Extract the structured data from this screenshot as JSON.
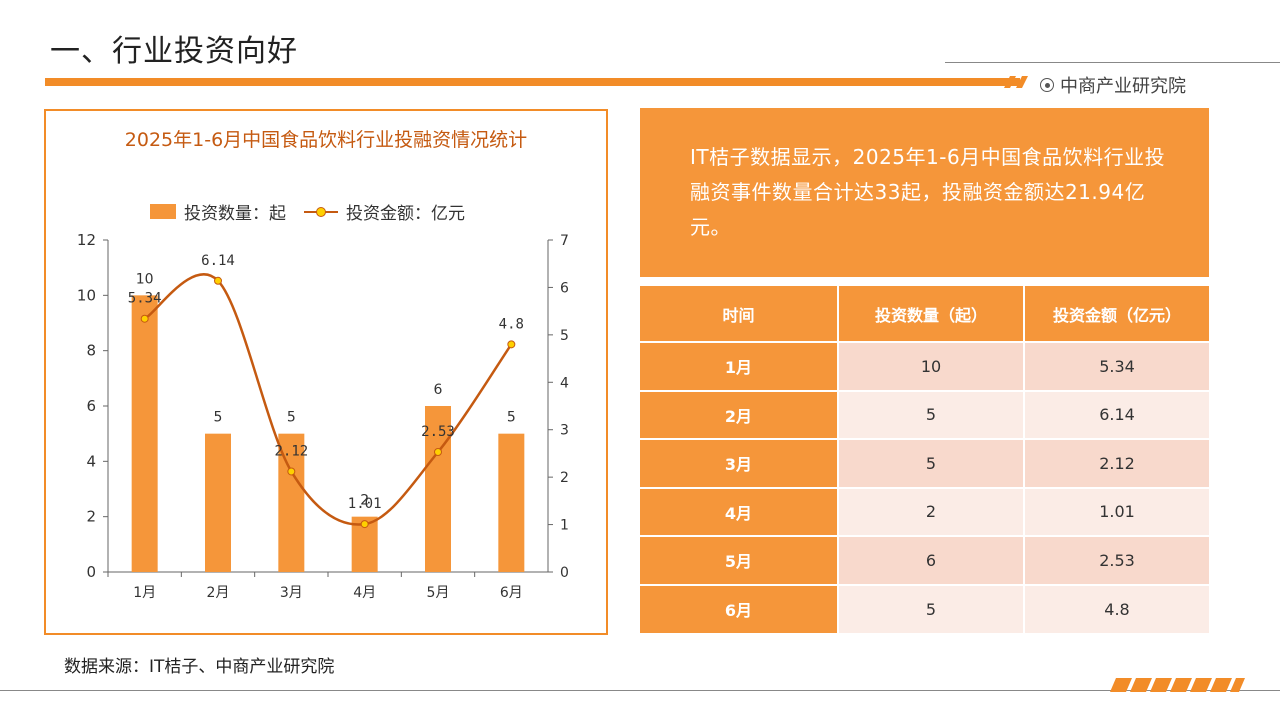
{
  "header": {
    "title": "一、行业投资向好",
    "brand": "中商产业研究院",
    "brand_icon": "target-icon",
    "accent_color": "#f28c28"
  },
  "chart_data": {
    "type": "bar+line",
    "title": "2025年1-6月中国食品饮料行业投融资情况统计",
    "categories": [
      "1月",
      "2月",
      "3月",
      "4月",
      "5月",
      "6月"
    ],
    "series": [
      {
        "name": "投资数量：起",
        "type": "bar",
        "axis": "left",
        "color": "#f5963a",
        "values": [
          10,
          5,
          5,
          2,
          6,
          5
        ]
      },
      {
        "name": "投资金额：亿元",
        "type": "line",
        "axis": "right",
        "color": "#c55a11",
        "marker_color": "#ffd000",
        "values": [
          5.34,
          6.14,
          2.12,
          1.01,
          2.53,
          4.8
        ]
      }
    ],
    "y_left": {
      "min": 0,
      "max": 12,
      "ticks": [
        0,
        2,
        4,
        6,
        8,
        10,
        12
      ]
    },
    "y_right": {
      "min": 0,
      "max": 7,
      "ticks": [
        0,
        1,
        2,
        3,
        4,
        5,
        6,
        7
      ]
    },
    "legend_position": "top",
    "grid": false
  },
  "summary": {
    "text": "IT桔子数据显示，2025年1-6月中国食品饮料行业投融资事件数量合计达33起，投融资金额达21.94亿元。"
  },
  "table": {
    "headers": [
      "时间",
      "投资数量（起）",
      "投资金额（亿元）"
    ],
    "rows": [
      [
        "1月",
        "10",
        "5.34"
      ],
      [
        "2月",
        "5",
        "6.14"
      ],
      [
        "3月",
        "5",
        "2.12"
      ],
      [
        "4月",
        "2",
        "1.01"
      ],
      [
        "5月",
        "6",
        "2.53"
      ],
      [
        "6月",
        "5",
        "4.8"
      ]
    ]
  },
  "footer": {
    "source": "数据来源：IT桔子、中商产业研究院"
  }
}
